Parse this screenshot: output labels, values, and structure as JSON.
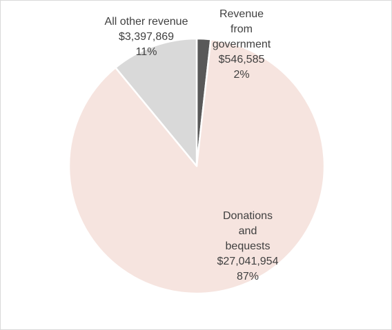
{
  "chart_data": {
    "type": "pie",
    "title": "",
    "slices": [
      {
        "label_lines": [
          "Revenue",
          "from",
          "government"
        ],
        "value_text": "$546,585",
        "percent_text": "2%",
        "value": 546585,
        "percent": 2,
        "color": "#595959"
      },
      {
        "label_lines": [
          "Donations",
          "and",
          "bequests"
        ],
        "value_text": "$27,041,954",
        "percent_text": "87%",
        "value": 27041954,
        "percent": 87,
        "color": "#f6e4df"
      },
      {
        "label_lines": [
          "All other revenue"
        ],
        "value_text": "$3,397,869",
        "percent_text": "11%",
        "value": 3397869,
        "percent": 11,
        "color": "#d9d9d9"
      }
    ],
    "slice_border_color": "#ffffff",
    "legend": "none"
  }
}
